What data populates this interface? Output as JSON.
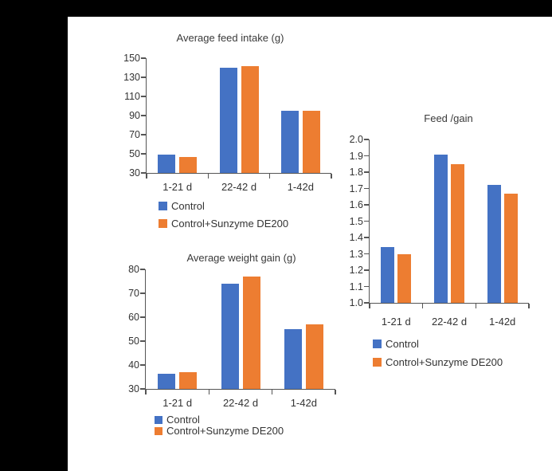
{
  "page": {
    "background": "#ffffff",
    "frame_color": "#000000"
  },
  "colors": {
    "control": "#4472C4",
    "sunzyme": "#ED7D31",
    "axis": "#555555",
    "text": "#333333"
  },
  "chart_data": [
    {
      "type": "bar",
      "title": "Average feed intake (g)",
      "categories": [
        "1-21 d",
        "22-42 d",
        "1-42d"
      ],
      "series": [
        {
          "name": "Control",
          "color": "#4472C4",
          "values": [
            49,
            140,
            95
          ]
        },
        {
          "name": "Control+Sunzyme DE200",
          "color": "#ED7D31",
          "values": [
            47,
            142,
            95
          ]
        }
      ],
      "ylim": [
        30,
        150
      ],
      "ytick_step": 20,
      "ytick_decimals": 0,
      "grid": false,
      "legend_position": "bottom-left"
    },
    {
      "type": "bar",
      "title": "Feed /gain",
      "categories": [
        "1-21 d",
        "22-42 d",
        "1-42d"
      ],
      "series": [
        {
          "name": "Control",
          "color": "#4472C4",
          "values": [
            1.34,
            1.91,
            1.72
          ]
        },
        {
          "name": "Control+Sunzyme DE200",
          "color": "#ED7D31",
          "values": [
            1.3,
            1.85,
            1.67
          ]
        }
      ],
      "ylim": [
        1.0,
        2.0
      ],
      "ytick_step": 0.1,
      "ytick_decimals": 1,
      "grid": false,
      "legend_position": "bottom-left"
    },
    {
      "type": "bar",
      "title": "Average weight gain (g)",
      "categories": [
        "1-21 d",
        "22-42 d",
        "1-42d"
      ],
      "series": [
        {
          "name": "Control",
          "color": "#4472C4",
          "values": [
            36.5,
            74,
            55
          ]
        },
        {
          "name": "Control+Sunzyme DE200",
          "color": "#ED7D31",
          "values": [
            37,
            77,
            57
          ]
        }
      ],
      "ylim": [
        30,
        80
      ],
      "ytick_step": 10,
      "ytick_decimals": 0,
      "grid": false,
      "legend_position": "bottom-left"
    }
  ]
}
